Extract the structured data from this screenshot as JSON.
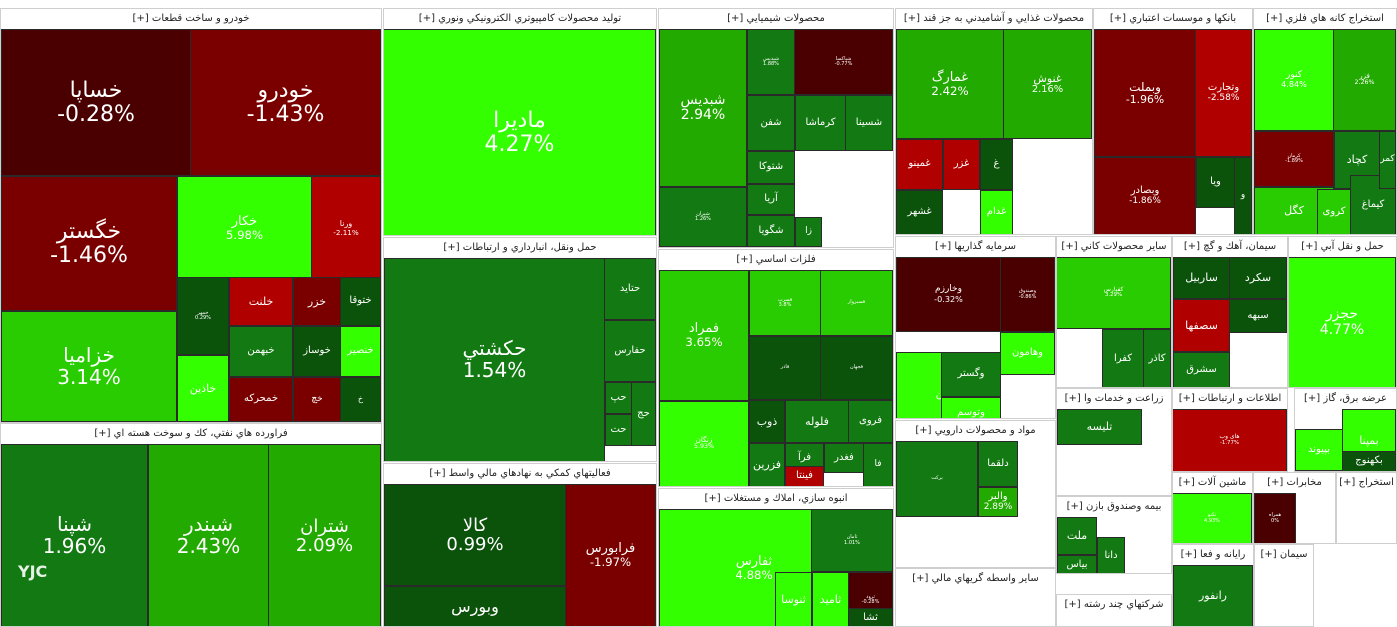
{
  "chart_data": {
    "type": "treemap",
    "title": "",
    "expand_label": "[+]",
    "colors": {
      "strong_positive": "#33ff00",
      "positive": "#22aa00",
      "mild_positive": "#137a13",
      "neutral_positive": "#0b520b",
      "mild_negative": "#6b0000",
      "negative": "#8b0000",
      "strong_negative": "#c00000"
    },
    "sectors": [
      {
        "name": "خودرو و ساخت قطعات",
        "tiles": [
          {
            "symbol": "خساپا",
            "change": "-0.28%",
            "color": "#4a0000"
          },
          {
            "symbol": "خودرو",
            "change": "-1.43%",
            "color": "#7a0000"
          },
          {
            "symbol": "خگستر",
            "change": "-1.46%",
            "color": "#7a0000"
          },
          {
            "symbol": "خکار",
            "change": "5.98%",
            "color": "#33ff00"
          },
          {
            "symbol": "ورنا",
            "change": "-2.11%",
            "color": "#b00000"
          },
          {
            "symbol": "خزامیا",
            "change": "3.14%",
            "color": "#29cc00"
          },
          {
            "symbol": "خمهر",
            "change": "0.29%",
            "color": "#0b520b"
          },
          {
            "symbol": "خلنت",
            "change": "",
            "color": "#b00000"
          },
          {
            "symbol": "خزر",
            "change": "",
            "color": "#7a0000"
          },
          {
            "symbol": "ختوقا",
            "change": "",
            "color": "#0b520b"
          },
          {
            "symbol": "خاذین",
            "change": "",
            "color": "#33ff00"
          },
          {
            "symbol": "خبهمن",
            "change": "",
            "color": "#137a13"
          },
          {
            "symbol": "خوساز",
            "change": "",
            "color": "#0b520b"
          },
          {
            "symbol": "خنصیر",
            "change": "",
            "color": "#33ff00"
          },
          {
            "symbol": "خمحرکه",
            "change": "",
            "color": "#7a0000"
          },
          {
            "symbol": "خچ",
            "change": "",
            "color": "#7a0000"
          },
          {
            "symbol": "خ",
            "change": "",
            "color": "#0b520b"
          }
        ]
      },
      {
        "name": "فراورده هاي نفتي، كك و سوخت هسته اي",
        "tiles": [
          {
            "symbol": "شپنا",
            "change": "1.96%",
            "color": "#137a13"
          },
          {
            "symbol": "شبندر",
            "change": "2.43%",
            "color": "#22aa00"
          },
          {
            "symbol": "شتران",
            "change": "2.09%",
            "color": "#22aa00"
          }
        ]
      },
      {
        "name": "توليد محصولات كامپيوتري الكترونيكي ونوري",
        "tiles": [
          {
            "symbol": "ماديرا",
            "change": "4.27%",
            "color": "#33ff00"
          }
        ]
      },
      {
        "name": "حمل ونقل، انبارداري و ارتباطات",
        "tiles": [
          {
            "symbol": "حكشتي",
            "change": "1.54%",
            "color": "#137a13"
          },
          {
            "symbol": "حتاید",
            "change": "",
            "color": "#137a13"
          },
          {
            "symbol": "حفارس",
            "change": "",
            "color": "#137a13"
          },
          {
            "symbol": "حپ",
            "change": "",
            "color": "#137a13"
          },
          {
            "symbol": "حت",
            "change": "",
            "color": "#137a13"
          },
          {
            "symbol": "حج",
            "change": "",
            "color": "#137a13"
          }
        ]
      },
      {
        "name": "فعاليتهاي كمكي به نهادهاي مالي واسط",
        "tiles": [
          {
            "symbol": "كالا",
            "change": "0.99%",
            "color": "#0b520b"
          },
          {
            "symbol": "فرابورس",
            "change": "-1.97%",
            "color": "#7a0000"
          },
          {
            "symbol": "وبورس",
            "change": "",
            "color": "#0b520b"
          }
        ]
      },
      {
        "name": "محصولات شيميايي",
        "tiles": [
          {
            "symbol": "شبدیس",
            "change": "2.94%",
            "color": "#22aa00"
          },
          {
            "symbol": "شپدیس",
            "change": "1.88%",
            "color": "#137a13"
          },
          {
            "symbol": "شپاکسا",
            "change": "-0.77%",
            "color": "#4a0000"
          },
          {
            "symbol": "شفن",
            "change": "",
            "color": "#137a13"
          },
          {
            "symbol": "کرماشا",
            "change": "",
            "color": "#137a13"
          },
          {
            "symbol": "شسینا",
            "change": "",
            "color": "#137a13"
          },
          {
            "symbol": "شتوکا",
            "change": "",
            "color": "#137a13"
          },
          {
            "symbol": "آریا",
            "change": "",
            "color": "#137a13"
          },
          {
            "symbol": "شگویا",
            "change": "",
            "color": "#137a13"
          },
          {
            "symbol": "زا",
            "change": "",
            "color": "#137a13"
          },
          {
            "symbol": "شیران",
            "change": "1.26%",
            "color": "#137a13"
          }
        ]
      },
      {
        "name": "فلزات اساسي",
        "tiles": [
          {
            "symbol": "فمراد",
            "change": "3.65%",
            "color": "#29cc00"
          },
          {
            "symbol": "زنگان",
            "change": "5.93%",
            "color": "#33ff00"
          },
          {
            "symbol": "فسرب",
            "change": "3.8%",
            "color": "#29cc00"
          },
          {
            "symbol": "فسبزوار",
            "change": "",
            "color": "#29cc00"
          },
          {
            "symbol": "فاذر",
            "change": "",
            "color": "#0b520b"
          },
          {
            "symbol": "فجهان",
            "change": "",
            "color": "#0b520b"
          },
          {
            "symbol": "ذوب",
            "change": "",
            "color": "#0b520b"
          },
          {
            "symbol": "فلوله",
            "change": "",
            "color": "#137a13"
          },
          {
            "symbol": "فروی",
            "change": "",
            "color": "#137a13"
          },
          {
            "symbol": "فرآ",
            "change": "",
            "color": "#137a13"
          },
          {
            "symbol": "فغدر",
            "change": "",
            "color": "#137a13"
          },
          {
            "symbol": "فزرین",
            "change": "",
            "color": "#137a13"
          },
          {
            "symbol": "فینتا",
            "change": "",
            "color": "#b00000"
          },
          {
            "symbol": "فا",
            "change": "",
            "color": "#137a13"
          }
        ]
      },
      {
        "name": "انبوه سازي، املاك و مستغلات",
        "tiles": [
          {
            "symbol": "ثفارس",
            "change": "4.88%",
            "color": "#33ff00"
          },
          {
            "symbol": "ثامان",
            "change": "1.01%",
            "color": "#137a13"
          },
          {
            "symbol": "ثرود",
            "change": "-0.28%",
            "color": "#4a0000"
          },
          {
            "symbol": "ثنوسا",
            "change": "",
            "color": "#33ff00"
          },
          {
            "symbol": "ثامید",
            "change": "",
            "color": "#33ff00"
          },
          {
            "symbol": "ثشا",
            "change": "",
            "color": "#0b520b"
          }
        ]
      },
      {
        "name": "محصولات غذايي و آشاميدني به جز قند",
        "tiles": [
          {
            "symbol": "غمارگ",
            "change": "2.42%",
            "color": "#22aa00"
          },
          {
            "symbol": "غنوش",
            "change": "2.16%",
            "color": "#22aa00"
          },
          {
            "symbol": "غمینو",
            "change": "",
            "color": "#b00000"
          },
          {
            "symbol": "غزر",
            "change": "",
            "color": "#b00000"
          },
          {
            "symbol": "غشهر",
            "change": "",
            "color": "#0b520b"
          },
          {
            "symbol": "غدام",
            "change": "",
            "color": "#33ff00"
          },
          {
            "symbol": "غ",
            "change": "",
            "color": "#0b520b"
          }
        ]
      },
      {
        "name": "بانكها و موسسات اعتباري",
        "tiles": [
          {
            "symbol": "وبملت",
            "change": "-1.96%",
            "color": "#7a0000"
          },
          {
            "symbol": "وتجارت",
            "change": "-2.58%",
            "color": "#b00000"
          },
          {
            "symbol": "وبصادر",
            "change": "-1.86%",
            "color": "#7a0000"
          },
          {
            "symbol": "ویا",
            "change": "",
            "color": "#0b520b"
          },
          {
            "symbol": "و",
            "change": "",
            "color": "#0b520b"
          }
        ]
      },
      {
        "name": "استخراج كانه هاي فلزي",
        "tiles": [
          {
            "symbol": "کنور",
            "change": "4.84%",
            "color": "#33ff00"
          },
          {
            "symbol": "فزر",
            "change": "2.26%",
            "color": "#22aa00"
          },
          {
            "symbol": "کچاد",
            "change": "",
            "color": "#137a13"
          },
          {
            "symbol": "کگل",
            "change": "",
            "color": "#29cc00"
          },
          {
            "symbol": "کروی",
            "change": "",
            "color": "#29cc00"
          },
          {
            "symbol": "کیماغ",
            "change": "",
            "color": "#137a13"
          },
          {
            "symbol": "کمر",
            "change": "",
            "color": "#137a13"
          },
          {
            "symbol": "کرمان",
            "change": "-1.89%",
            "color": "#7a0000"
          }
        ]
      },
      {
        "name": "سرمايه گذاريها",
        "tiles": [
          {
            "symbol": "وخارزم",
            "change": "-0.32%",
            "color": "#4a0000"
          },
          {
            "symbol": "وبهمن",
            "change": "",
            "color": "#33ff00"
          },
          {
            "symbol": "وگستر",
            "change": "",
            "color": "#137a13"
          },
          {
            "symbol": "وهامون",
            "change": "",
            "color": "#33ff00"
          },
          {
            "symbol": "وتوسم",
            "change": "1.05%",
            "color": "#33ff00"
          },
          {
            "symbol": "وصندوق",
            "change": "-0.86%",
            "color": "#4a0000"
          }
        ]
      },
      {
        "name": "ساير محصولات كاني",
        "tiles": [
          {
            "symbol": "کفپارس",
            "change": "3.29%",
            "color": "#29cc00"
          },
          {
            "symbol": "کفرا",
            "change": "",
            "color": "#137a13"
          },
          {
            "symbol": "کاذر",
            "change": "",
            "color": "#137a13"
          }
        ]
      },
      {
        "name": "سيمان، آهك و گچ",
        "tiles": [
          {
            "symbol": "ساربیل",
            "change": "",
            "color": "#0b520b"
          },
          {
            "symbol": "سکرد",
            "change": "",
            "color": "#0b520b"
          },
          {
            "symbol": "سبهه",
            "change": "",
            "color": "#0b520b"
          },
          {
            "symbol": "سصفها",
            "change": "",
            "color": "#b00000"
          },
          {
            "symbol": "سشرق",
            "change": "",
            "color": "#137a13"
          }
        ]
      },
      {
        "name": "حمل و نقل آبي",
        "tiles": [
          {
            "symbol": "حجزر",
            "change": "4.77%",
            "color": "#33ff00"
          }
        ]
      },
      {
        "name": "زراعت و خدمات وا",
        "tiles": [
          {
            "symbol": "تلیسه",
            "change": "",
            "color": "#137a13"
          }
        ]
      },
      {
        "name": "اطلاعات و ارتباطات",
        "tiles": [
          {
            "symbol": "های وب",
            "change": "-1.77%",
            "color": "#b00000"
          }
        ]
      },
      {
        "name": "عرضه برق، گاز",
        "tiles": [
          {
            "symbol": "بپیوند",
            "change": "",
            "color": "#33ff00"
          },
          {
            "symbol": "بمپنا",
            "change": "",
            "color": "#33ff00"
          },
          {
            "symbol": "بکهنوج",
            "change": "",
            "color": "#0b520b"
          }
        ]
      },
      {
        "name": "مواد و محصولات دارويي",
        "tiles": [
          {
            "symbol": "برکت",
            "change": "",
            "color": "#137a13"
          },
          {
            "symbol": "دلقما",
            "change": "",
            "color": "#137a13"
          },
          {
            "symbol": "والبر",
            "change": "2.89%",
            "color": "#22aa00"
          }
        ]
      },
      {
        "name": "بيمه وصندوق بازن",
        "tiles": [
          {
            "symbol": "ملت",
            "change": "",
            "color": "#137a13"
          },
          {
            "symbol": "بیاس",
            "change": "",
            "color": "#137a13"
          },
          {
            "symbol": "دانا",
            "change": "",
            "color": "#137a13"
          }
        ]
      },
      {
        "name": "ماشين آلات",
        "tiles": [
          {
            "symbol": "تکنو",
            "change": "4.93%",
            "color": "#33ff00"
          }
        ]
      },
      {
        "name": "مخابرات",
        "tiles": [
          {
            "symbol": "همراه",
            "change": "0%",
            "color": "#4a0000"
          }
        ]
      },
      {
        "name": "استخراج",
        "tiles": []
      },
      {
        "name": "رايانه و فعا",
        "tiles": [
          {
            "symbol": "رانفور",
            "change": "",
            "color": "#137a13"
          }
        ]
      },
      {
        "name": "سيمان",
        "tiles": []
      },
      {
        "name": "ساير واسطه گريهاي مالي",
        "tiles": []
      },
      {
        "name": "شركتهاي چند رشته",
        "tiles": []
      }
    ]
  }
}
